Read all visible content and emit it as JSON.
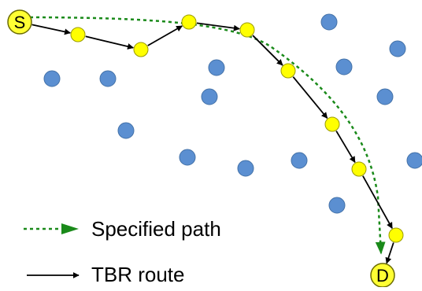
{
  "colors": {
    "background": "#ffffff",
    "node_fill": "#5b8fd1",
    "node_stroke": "#4472a8",
    "route_node_fill": "#ffff00",
    "route_node_stroke": "#9a9a00",
    "terminal_fill": "#ffff33",
    "terminal_stroke": "#6b6b00",
    "specified_path": "#1a8a1a",
    "tbr_route": "#000000"
  },
  "terminals": {
    "source_label": "S",
    "destination_label": "D"
  },
  "legend": {
    "specified_path_label": "Specified path",
    "tbr_route_label": "TBR route"
  }
}
